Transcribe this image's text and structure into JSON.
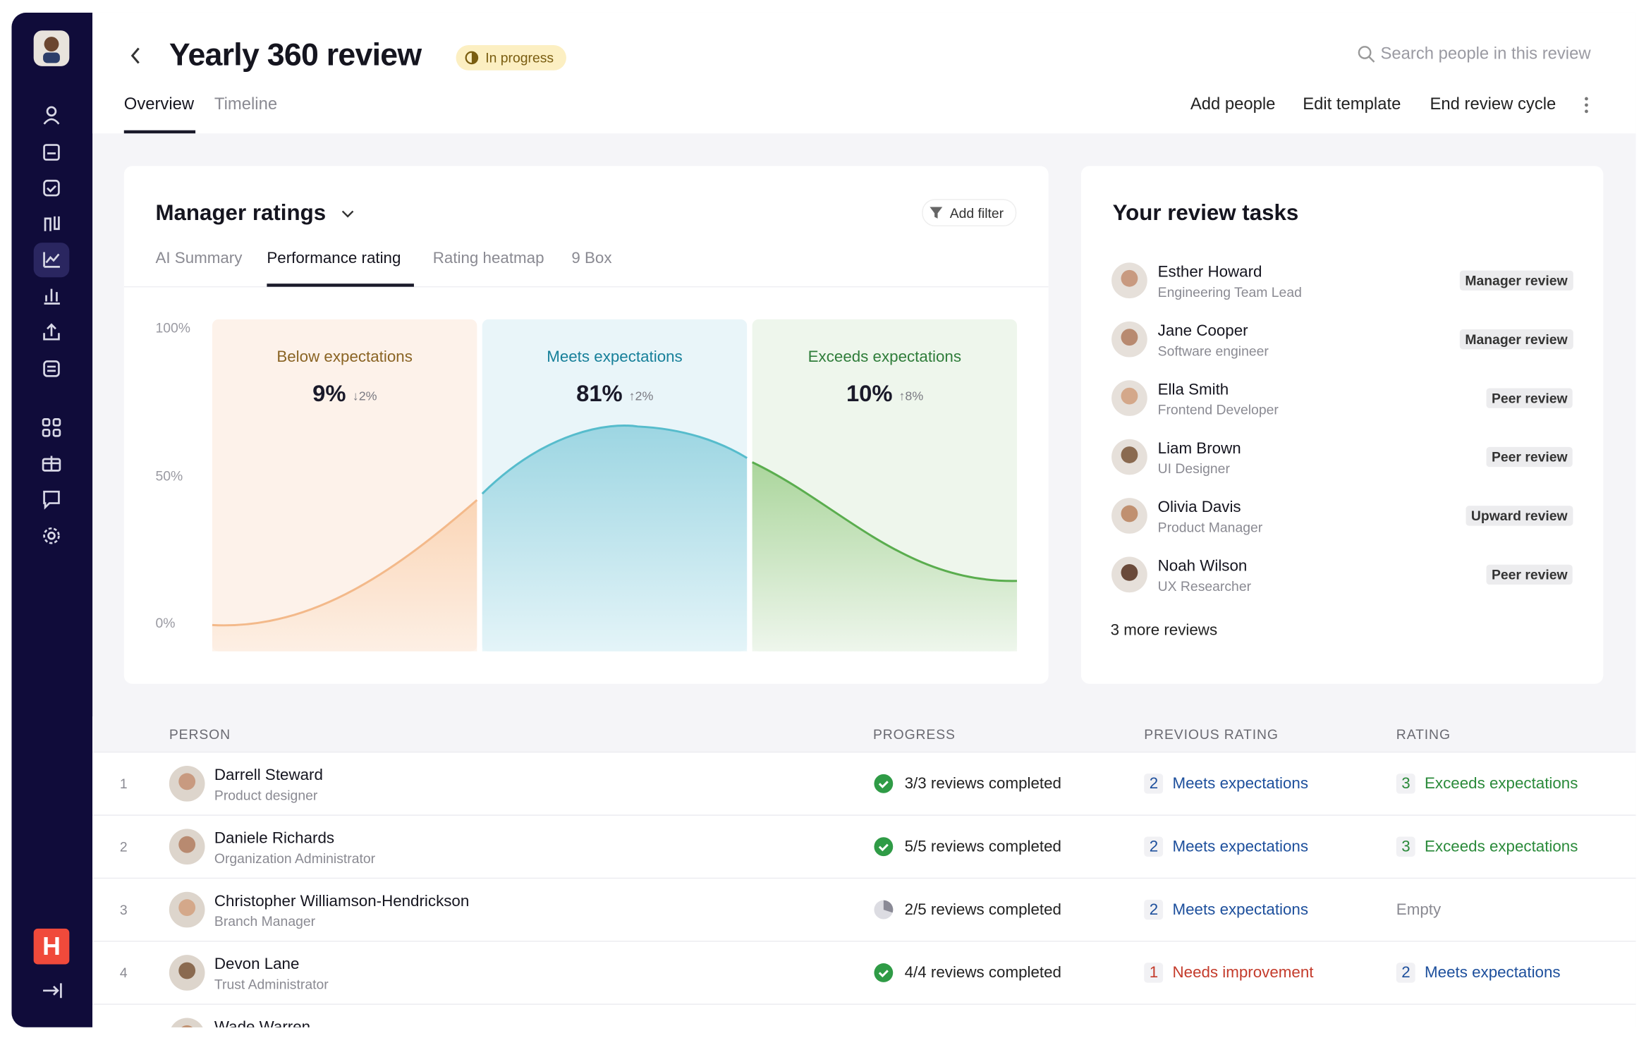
{
  "header": {
    "title": "Yearly 360 review",
    "status": "In progress",
    "search": "Search people in this review",
    "tabs": [
      "Overview",
      "Timeline"
    ],
    "actions": [
      "Add people",
      "Edit template",
      "End review cycle"
    ]
  },
  "ratings": {
    "title": "Manager ratings",
    "filter": "Add filter",
    "tabs": [
      "AI Summary",
      "Performance rating",
      "Rating heatmap",
      "9 Box"
    ],
    "yticks": [
      "100%",
      "50%",
      "0%"
    ],
    "categories": [
      {
        "name": "Below expectations",
        "value": "9%",
        "change": "↓2%",
        "color": "#8a6424"
      },
      {
        "name": "Meets expectations",
        "value": "81%",
        "change": "↑2%",
        "color": "#17809a"
      },
      {
        "name": "Exceeds expectations",
        "value": "10%",
        "change": "↑8%",
        "color": "#2f7d3a"
      }
    ]
  },
  "tasks": {
    "title": "Your review tasks",
    "items": [
      {
        "name": "Esther Howard",
        "role": "Engineering Team Lead",
        "tag": "Manager review"
      },
      {
        "name": "Jane Cooper",
        "role": "Software engineer",
        "tag": "Manager review"
      },
      {
        "name": "Ella Smith",
        "role": "Frontend Developer",
        "tag": "Peer review"
      },
      {
        "name": "Liam Brown",
        "role": "UI Designer",
        "tag": "Peer review"
      },
      {
        "name": "Olivia Davis",
        "role": "Product Manager",
        "tag": "Upward review"
      },
      {
        "name": "Noah Wilson",
        "role": "UX Researcher",
        "tag": "Peer review"
      }
    ],
    "more": "3 more reviews"
  },
  "table": {
    "columns": [
      "PERSON",
      "PROGRESS",
      "PREVIOUS RATING",
      "RATING"
    ],
    "rows": [
      {
        "index": "1",
        "name": "Darrell Steward",
        "role": "Product designer",
        "progress": "3/3 reviews completed",
        "progress_icon": "check",
        "previous": {
          "score": "2",
          "label": "Meets expectations",
          "color": "#1d4f9c"
        },
        "rating": {
          "score": "3",
          "label": "Exceeds expectations",
          "color": "#2a8a3a"
        }
      },
      {
        "index": "2",
        "name": "Daniele Richards",
        "role": "Organization Administrator",
        "progress": "5/5 reviews completed",
        "progress_icon": "check",
        "previous": {
          "score": "2",
          "label": "Meets expectations",
          "color": "#1d4f9c"
        },
        "rating": {
          "score": "3",
          "label": "Exceeds expectations",
          "color": "#2a8a3a"
        }
      },
      {
        "index": "3",
        "name": "Christopher Williamson-Hendrickson",
        "role": "Branch Manager",
        "progress": "2/5 reviews completed",
        "progress_icon": "partial",
        "previous": {
          "score": "2",
          "label": "Meets expectations",
          "color": "#1d4f9c"
        },
        "rating": {
          "label": "Empty",
          "color": "#8a8a92"
        }
      },
      {
        "index": "4",
        "name": "Devon Lane",
        "role": "Trust Administrator",
        "progress": "4/4 reviews completed",
        "progress_icon": "check",
        "previous": {
          "score": "1",
          "label": "Needs improvement",
          "color": "#c43b2b"
        },
        "rating": {
          "score": "2",
          "label": "Meets expectations",
          "color": "#1d4f9c"
        }
      },
      {
        "name": "Wade Warren"
      }
    ]
  }
}
